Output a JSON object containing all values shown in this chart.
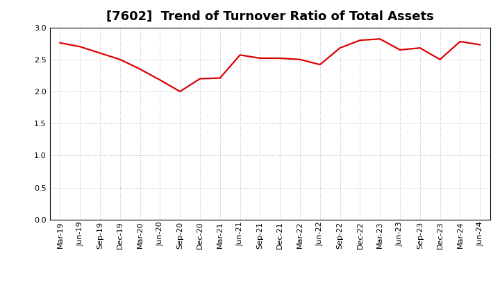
{
  "title": "[7602]  Trend of Turnover Ratio of Total Assets",
  "line_color": "#dd0000",
  "line_width": 1.6,
  "background_color": "#ffffff",
  "grid_color": "#bbbbbb",
  "ylim": [
    0.0,
    3.0
  ],
  "yticks": [
    0.0,
    0.5,
    1.0,
    1.5,
    2.0,
    2.5,
    3.0
  ],
  "labels": [
    "Mar-19",
    "Jun-19",
    "Sep-19",
    "Dec-19",
    "Mar-20",
    "Jun-20",
    "Sep-20",
    "Dec-20",
    "Mar-21",
    "Jun-21",
    "Sep-21",
    "Dec-21",
    "Mar-22",
    "Jun-22",
    "Sep-22",
    "Dec-22",
    "Mar-23",
    "Jun-23",
    "Sep-23",
    "Dec-23",
    "Mar-24",
    "Jun-24"
  ],
  "values": [
    2.76,
    2.7,
    2.6,
    2.5,
    2.35,
    2.18,
    2.0,
    2.2,
    2.21,
    2.57,
    2.52,
    2.52,
    2.5,
    2.42,
    2.68,
    2.8,
    2.82,
    2.65,
    2.68,
    2.5,
    2.78,
    2.73
  ],
  "title_fontsize": 13,
  "tick_fontsize": 8,
  "title_fontweight": "bold"
}
